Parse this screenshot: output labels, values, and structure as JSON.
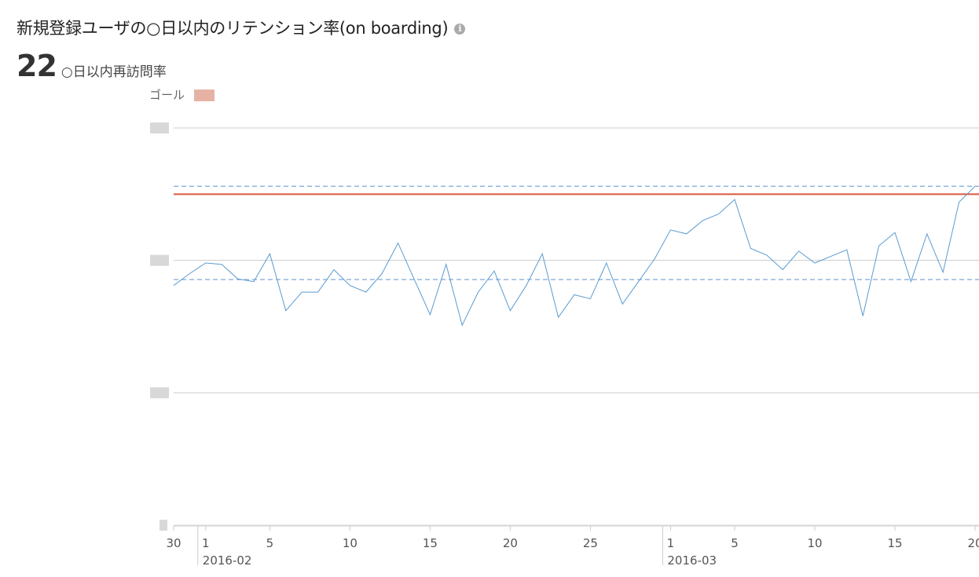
{
  "header": {
    "title": "新規登録ユーザの○日以内のリテンション率(on boarding)",
    "info_icon": "info-icon"
  },
  "kpi": {
    "value": "22",
    "label": "○日以内再訪問率"
  },
  "chart_data": {
    "type": "line",
    "goal_label": "ゴール",
    "y_tick_labels_obscured": true,
    "ylim": [
      0,
      3
    ],
    "y_gridlines": [
      0,
      1,
      2,
      3
    ],
    "grid": true,
    "goal": 2.5,
    "bands": [
      2.56,
      1.855
    ],
    "colors": {
      "line": "#5a9bd0",
      "goal": "#d9583b",
      "band": "#7fa8d8",
      "grid": "#cccccc"
    },
    "x_ticks": [
      {
        "date": "2016-01-30",
        "label": "30"
      },
      {
        "date": "2016-02-01",
        "label": "1"
      },
      {
        "date": "2016-02-05",
        "label": "5"
      },
      {
        "date": "2016-02-10",
        "label": "10"
      },
      {
        "date": "2016-02-15",
        "label": "15"
      },
      {
        "date": "2016-02-20",
        "label": "20"
      },
      {
        "date": "2016-02-25",
        "label": "25"
      },
      {
        "date": "2016-03-01",
        "label": "1"
      },
      {
        "date": "2016-03-05",
        "label": "5"
      },
      {
        "date": "2016-03-10",
        "label": "10"
      },
      {
        "date": "2016-03-15",
        "label": "15"
      },
      {
        "date": "2016-03-20",
        "label": "20"
      }
    ],
    "month_labels": [
      {
        "date": "2016-02-01",
        "label": "2016-02"
      },
      {
        "date": "2016-03-01",
        "label": "2016-03"
      }
    ],
    "start_date": "2016-01-30",
    "values": [
      1.81,
      1.9,
      1.98,
      1.97,
      1.86,
      1.84,
      2.05,
      1.62,
      1.76,
      1.76,
      1.93,
      1.81,
      1.76,
      1.9,
      2.13,
      1.86,
      1.59,
      1.97,
      1.51,
      1.76,
      1.92,
      1.62,
      1.81,
      2.05,
      1.57,
      1.74,
      1.71,
      1.98,
      1.67,
      1.84,
      2.01,
      2.23,
      2.2,
      2.3,
      2.35,
      2.46,
      2.09,
      2.04,
      1.93,
      2.07,
      1.98,
      2.03,
      2.08,
      1.58,
      2.11,
      2.21,
      1.84,
      2.2,
      1.91,
      2.44,
      2.56
    ]
  }
}
